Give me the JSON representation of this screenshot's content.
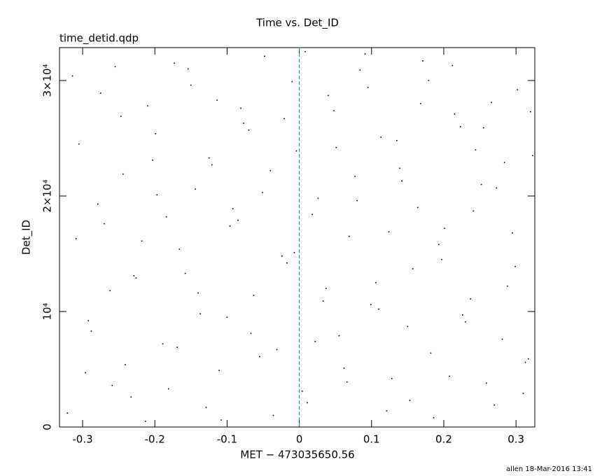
{
  "chart_data": {
    "type": "scatter",
    "title": "Time vs. Det_ID",
    "subtitle": "time_detid.qdp",
    "x_label": "MET − 473035650.56",
    "y_label": "Det_ID",
    "footer": "allen 18-Mar-2016 13:41",
    "color": "#000000",
    "vline": 0,
    "vline_color": "#2a9fb0",
    "xlim": [
      -0.332,
      0.326
    ],
    "ylim": [
      0,
      32850
    ],
    "xticks": [
      -0.3,
      -0.2,
      -0.1,
      0,
      0.1,
      0.2,
      0.3
    ],
    "yticks": [
      0,
      {
        "value": 10000,
        "label": "10⁴"
      },
      {
        "value": 20000,
        "label": "2×10⁴"
      },
      {
        "value": 30000,
        "label": "3×10⁴"
      }
    ],
    "x": [
      -0.321,
      -0.305,
      -0.288,
      -0.27,
      -0.255,
      -0.241,
      -0.226,
      -0.21,
      -0.197,
      -0.181,
      -0.166,
      -0.15,
      -0.137,
      -0.121,
      -0.108,
      -0.092,
      -0.077,
      -0.063,
      -0.048,
      -0.031,
      -0.017,
      -0.004,
      0.011,
      0.026,
      0.04,
      0.055,
      0.069,
      0.084,
      0.099,
      0.113,
      0.128,
      0.142,
      0.157,
      0.171,
      0.186,
      0.201,
      0.215,
      0.23,
      0.244,
      0.259,
      0.273,
      0.288,
      0.302,
      0.317,
      -0.314,
      -0.296,
      -0.279,
      -0.262,
      -0.247,
      -0.233,
      -0.218,
      -0.203,
      -0.189,
      -0.173,
      -0.158,
      -0.144,
      -0.129,
      -0.114,
      -0.1,
      -0.085,
      -0.07,
      -0.055,
      -0.04,
      -0.024,
      -0.01,
      0.004,
      0.018,
      0.033,
      0.048,
      0.062,
      0.077,
      0.091,
      0.106,
      0.121,
      0.135,
      0.15,
      0.164,
      0.179,
      0.193,
      0.208,
      0.223,
      0.237,
      0.252,
      0.266,
      0.281,
      0.295,
      0.31,
      0.323,
      -0.309,
      -0.292,
      -0.275,
      -0.259,
      -0.244,
      -0.229,
      -0.213,
      -0.199,
      -0.184,
      -0.169,
      -0.154,
      -0.14,
      -0.125,
      -0.111,
      -0.096,
      -0.081,
      -0.067,
      -0.051,
      -0.036,
      -0.021,
      -0.007,
      0.008,
      0.022,
      0.037,
      0.051,
      0.066,
      0.08,
      0.095,
      0.11,
      0.124,
      0.139,
      0.153,
      0.168,
      0.182,
      0.197,
      0.212,
      0.226,
      0.241,
      0.255,
      0.27,
      0.284,
      0.299,
      0.313,
      0.32
    ],
    "y": [
      1200,
      24500,
      8300,
      17600,
      31200,
      5400,
      12900,
      27800,
      20100,
      3300,
      15400,
      29600,
      9800,
      22700,
      600,
      18900,
      26300,
      11400,
      32100,
      6700,
      14200,
      23900,
      2100,
      19800,
      28700,
      7900,
      16500,
      30900,
      10600,
      25100,
      4200,
      21300,
      13700,
      31700,
      800,
      17200,
      27100,
      9100,
      24000,
      3800,
      20700,
      12200,
      29200,
      5900,
      30400,
      4700,
      19300,
      11800,
      26900,
      2600,
      16100,
      23100,
      7200,
      31500,
      13300,
      20600,
      1700,
      28300,
      9500,
      17900,
      25700,
      6100,
      22200,
      14800,
      29900,
      3100,
      18400,
      10900,
      27400,
      5100,
      21700,
      32300,
      12500,
      1400,
      24800,
      8700,
      19000,
      30000,
      15800,
      4400,
      26000,
      11100,
      21000,
      28100,
      7600,
      16800,
      2900,
      23500,
      16300,
      9200,
      28900,
      3600,
      21900,
      13100,
      500,
      25400,
      18200,
      6900,
      31000,
      11600,
      23300,
      4900,
      17400,
      27600,
      8100,
      20300,
      1000,
      26700,
      15100,
      32500,
      7400,
      12000,
      24200,
      3900,
      19600,
      29400,
      10200,
      16900,
      22400,
      2300,
      28000,
      6400,
      14500,
      31300,
      9700,
      18700,
      25900,
      1900,
      22900,
      13900,
      5600,
      27300
    ]
  }
}
